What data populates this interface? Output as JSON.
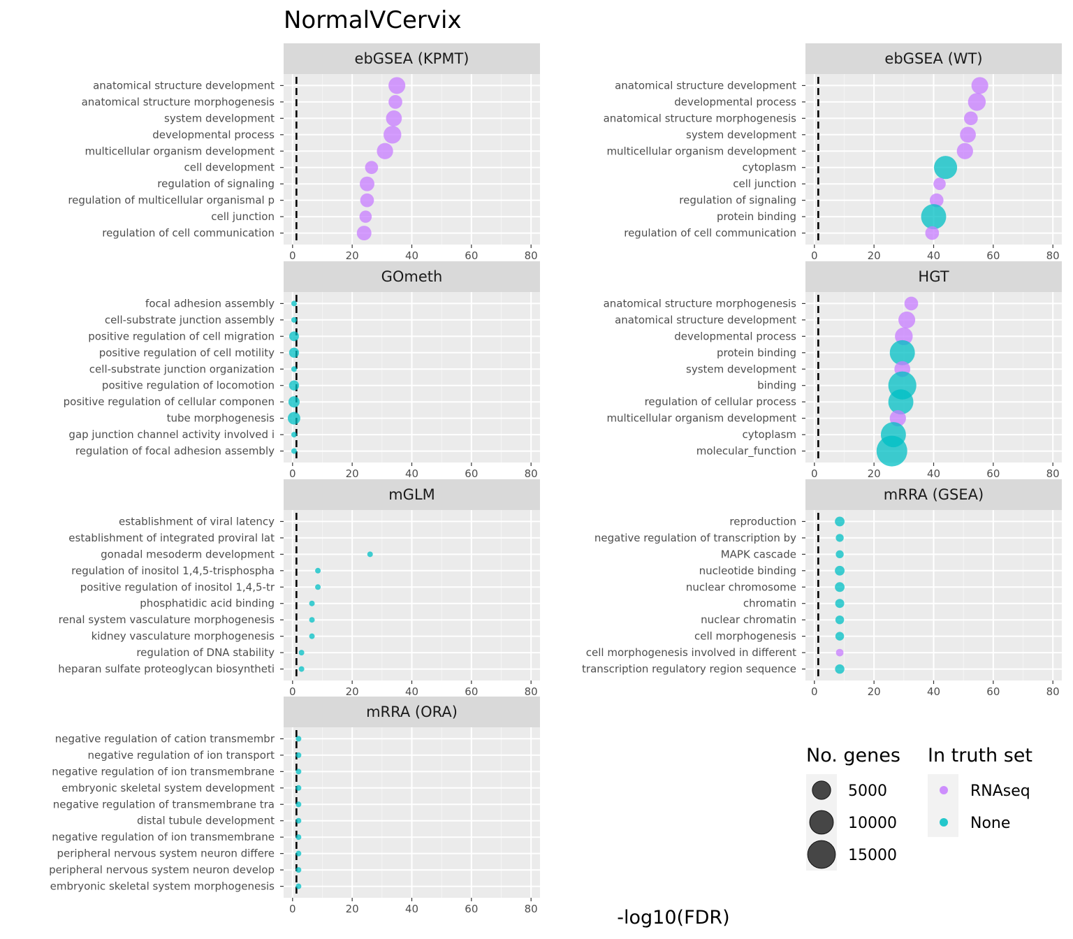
{
  "chart_data": {
    "type": "scatter",
    "title": "NormalVCervix",
    "xlabel": "-log10(FDR)",
    "xlim": [
      -3,
      83
    ],
    "x_ticks": [
      0,
      20,
      40,
      60,
      80
    ],
    "reference_line_x": 1.3,
    "grid": true,
    "colors": {
      "RNAseq": "#c77cff",
      "None": "#00bfc4"
    },
    "legend": {
      "size_title": "No. genes",
      "size_breaks": [
        5000,
        10000,
        15000
      ],
      "color_title": "In truth set",
      "color_entries": [
        "RNAseq",
        "None"
      ]
    },
    "panels": [
      {
        "name": "ebGSEA (KPMT)",
        "terms": [
          {
            "label": "anatomical structure development",
            "x": 35,
            "genes": 4500,
            "set": "RNAseq"
          },
          {
            "label": "anatomical structure morphogenesis",
            "x": 34.5,
            "genes": 3000,
            "set": "RNAseq"
          },
          {
            "label": "system development",
            "x": 34,
            "genes": 4000,
            "set": "RNAseq"
          },
          {
            "label": "developmental process",
            "x": 33.5,
            "genes": 5000,
            "set": "RNAseq"
          },
          {
            "label": "multicellular organism development",
            "x": 31,
            "genes": 4200,
            "set": "RNAseq"
          },
          {
            "label": "cell development",
            "x": 26.5,
            "genes": 2700,
            "set": "RNAseq"
          },
          {
            "label": "regulation of signaling",
            "x": 25,
            "genes": 3400,
            "set": "RNAseq"
          },
          {
            "label": "regulation of multicellular organismal p",
            "x": 25,
            "genes": 3000,
            "set": "RNAseq"
          },
          {
            "label": "cell junction",
            "x": 24.5,
            "genes": 2400,
            "set": "RNAseq"
          },
          {
            "label": "regulation of cell communication",
            "x": 24,
            "genes": 3400,
            "set": "RNAseq"
          }
        ]
      },
      {
        "name": "ebGSEA (WT)",
        "terms": [
          {
            "label": "anatomical structure development",
            "x": 55.5,
            "genes": 4500,
            "set": "RNAseq"
          },
          {
            "label": "developmental process",
            "x": 54.5,
            "genes": 5000,
            "set": "RNAseq"
          },
          {
            "label": "anatomical structure morphogenesis",
            "x": 52.5,
            "genes": 3000,
            "set": "RNAseq"
          },
          {
            "label": "system development",
            "x": 51.5,
            "genes": 4000,
            "set": "RNAseq"
          },
          {
            "label": "multicellular organism development",
            "x": 50.5,
            "genes": 4200,
            "set": "RNAseq"
          },
          {
            "label": "cytoplasm",
            "x": 44,
            "genes": 8500,
            "set": "None"
          },
          {
            "label": "cell junction",
            "x": 42,
            "genes": 2400,
            "set": "RNAseq"
          },
          {
            "label": "regulation of signaling",
            "x": 41,
            "genes": 3000,
            "set": "RNAseq"
          },
          {
            "label": "protein binding",
            "x": 40,
            "genes": 10000,
            "set": "None"
          },
          {
            "label": "regulation of cell communication",
            "x": 39.5,
            "genes": 3000,
            "set": "RNAseq"
          }
        ]
      },
      {
        "name": "GOmeth",
        "terms": [
          {
            "label": "focal adhesion assembly",
            "x": 0.5,
            "genes": 200,
            "set": "None"
          },
          {
            "label": "cell-substrate junction assembly",
            "x": 0.5,
            "genes": 250,
            "set": "None"
          },
          {
            "label": "positive regulation of cell migration",
            "x": 0.5,
            "genes": 1500,
            "set": "None"
          },
          {
            "label": "positive regulation of cell motility",
            "x": 0.5,
            "genes": 1600,
            "set": "None"
          },
          {
            "label": "cell-substrate junction organization",
            "x": 0.5,
            "genes": 300,
            "set": "None"
          },
          {
            "label": "positive regulation of locomotion",
            "x": 0.5,
            "genes": 1600,
            "set": "None"
          },
          {
            "label": "positive regulation of cellular componen",
            "x": 0.5,
            "genes": 2000,
            "set": "None"
          },
          {
            "label": "tube morphogenesis",
            "x": 0.5,
            "genes": 2500,
            "set": "None"
          },
          {
            "label": "gap junction channel activity involved i",
            "x": 0.5,
            "genes": 50,
            "set": "None"
          },
          {
            "label": "regulation of focal adhesion assembly",
            "x": 0.5,
            "genes": 100,
            "set": "None"
          }
        ]
      },
      {
        "name": "HGT",
        "terms": [
          {
            "label": "anatomical structure morphogenesis",
            "x": 32.5,
            "genes": 3000,
            "set": "RNAseq"
          },
          {
            "label": "anatomical structure development",
            "x": 31,
            "genes": 4500,
            "set": "RNAseq"
          },
          {
            "label": "developmental process",
            "x": 30,
            "genes": 5000,
            "set": "RNAseq"
          },
          {
            "label": "protein binding",
            "x": 29.5,
            "genes": 10000,
            "set": "None"
          },
          {
            "label": "system development",
            "x": 29.5,
            "genes": 4000,
            "set": "RNAseq"
          },
          {
            "label": "binding",
            "x": 29.5,
            "genes": 12500,
            "set": "None"
          },
          {
            "label": "regulation of cellular process",
            "x": 29,
            "genes": 10000,
            "set": "None"
          },
          {
            "label": "multicellular organism development",
            "x": 28,
            "genes": 4200,
            "set": "RNAseq"
          },
          {
            "label": "cytoplasm",
            "x": 26.5,
            "genes": 10000,
            "set": "None"
          },
          {
            "label": "molecular_function",
            "x": 26,
            "genes": 15000,
            "set": "None"
          }
        ]
      },
      {
        "name": "mGLM",
        "terms": [
          {
            "label": "establishment of viral latency",
            "x": 0,
            "genes": 0,
            "set": "None"
          },
          {
            "label": "establishment of integrated proviral lat",
            "x": 0,
            "genes": 0,
            "set": "None"
          },
          {
            "label": "gonadal mesoderm development",
            "x": 26,
            "genes": 10,
            "set": "None"
          },
          {
            "label": "regulation of inositol 1,4,5-trisphospha",
            "x": 8.5,
            "genes": 10,
            "set": "None"
          },
          {
            "label": "positive regulation of inositol 1,4,5-tr",
            "x": 8.5,
            "genes": 10,
            "set": "None"
          },
          {
            "label": "phosphatidic acid binding",
            "x": 6.5,
            "genes": 60,
            "set": "None"
          },
          {
            "label": "renal system vasculature morphogenesis",
            "x": 6.5,
            "genes": 20,
            "set": "None"
          },
          {
            "label": "kidney vasculature morphogenesis",
            "x": 6.5,
            "genes": 20,
            "set": "None"
          },
          {
            "label": "regulation of DNA stability",
            "x": 3,
            "genes": 30,
            "set": "None"
          },
          {
            "label": "heparan sulfate proteoglycan biosyntheti",
            "x": 3,
            "genes": 40,
            "set": "None"
          }
        ]
      },
      {
        "name": "mRRA (GSEA)",
        "terms": [
          {
            "label": "reproduction",
            "x": 8.5,
            "genes": 1500,
            "set": "None"
          },
          {
            "label": "negative regulation of transcription by ",
            "x": 8.5,
            "genes": 1000,
            "set": "None"
          },
          {
            "label": "MAPK cascade",
            "x": 8.5,
            "genes": 1000,
            "set": "None"
          },
          {
            "label": "nucleotide binding",
            "x": 8.5,
            "genes": 1500,
            "set": "None"
          },
          {
            "label": "nuclear chromosome",
            "x": 8.5,
            "genes": 1500,
            "set": "None"
          },
          {
            "label": "chromatin",
            "x": 8.5,
            "genes": 1300,
            "set": "None"
          },
          {
            "label": "nuclear chromatin",
            "x": 8.5,
            "genes": 1200,
            "set": "None"
          },
          {
            "label": "cell morphogenesis",
            "x": 8.5,
            "genes": 1200,
            "set": "None"
          },
          {
            "label": "cell morphogenesis involved in different",
            "x": 8.5,
            "genes": 900,
            "set": "RNAseq"
          },
          {
            "label": "transcription regulatory region sequence",
            "x": 8.5,
            "genes": 1400,
            "set": "None"
          }
        ]
      },
      {
        "name": "mRRA (ORA)",
        "terms": [
          {
            "label": "negative regulation of cation transmembr",
            "x": 2,
            "genes": 200,
            "set": "None"
          },
          {
            "label": "negative regulation of ion transport",
            "x": 2,
            "genes": 300,
            "set": "None"
          },
          {
            "label": "negative regulation of ion transmembrane",
            "x": 2,
            "genes": 250,
            "set": "None"
          },
          {
            "label": "embryonic skeletal system development",
            "x": 2,
            "genes": 250,
            "set": "None"
          },
          {
            "label": "negative regulation of transmembrane tra",
            "x": 2,
            "genes": 200,
            "set": "None"
          },
          {
            "label": "distal tubule development",
            "x": 2,
            "genes": 100,
            "set": "None"
          },
          {
            "label": "negative regulation of ion transmembrane",
            "x": 2,
            "genes": 150,
            "set": "None"
          },
          {
            "label": "peripheral nervous system neuron differe",
            "x": 2,
            "genes": 100,
            "set": "None"
          },
          {
            "label": "peripheral nervous system neuron develop",
            "x": 2,
            "genes": 100,
            "set": "None"
          },
          {
            "label": "embryonic skeletal system morphogenesis",
            "x": 2,
            "genes": 150,
            "set": "None"
          }
        ]
      }
    ]
  }
}
